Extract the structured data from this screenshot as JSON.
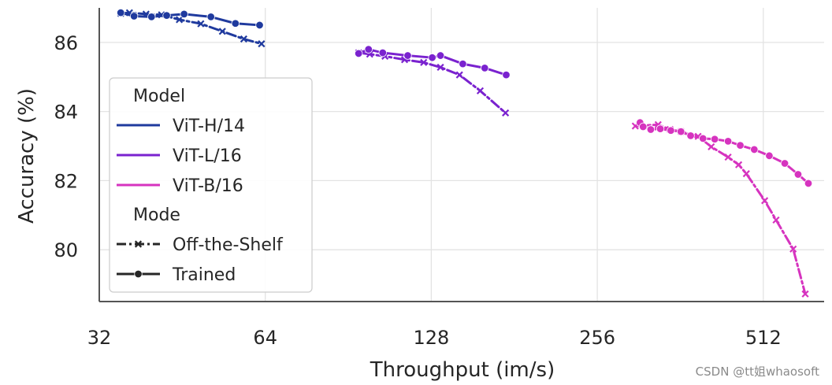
{
  "chart_data": {
    "type": "line",
    "xlabel": "Throughput (im/s)",
    "ylabel": "Accuracy (%)",
    "xscale": "log2",
    "xlim": [
      32,
      660
    ],
    "ylim": [
      78.5,
      87.0
    ],
    "xticks": [
      32,
      64,
      128,
      256,
      512
    ],
    "yticks": [
      80,
      82,
      84,
      86
    ],
    "grid": true,
    "legend": {
      "position": "left",
      "model_title": "Model",
      "mode_title": "Mode",
      "models": [
        {
          "name": "ViT-H/14",
          "color": "#1f3a9e"
        },
        {
          "name": "ViT-L/16",
          "color": "#7a22cf"
        },
        {
          "name": "ViT-B/16",
          "color": "#d633bf"
        }
      ],
      "modes": [
        {
          "name": "Off-the-Shelf",
          "marker": "x",
          "dash": "dashdot"
        },
        {
          "name": "Trained",
          "marker": "o",
          "dash": "solid"
        }
      ]
    },
    "series": [
      {
        "name": "ViT-H/14",
        "mode": "Off-the-Shelf",
        "color": "#1f3a9e",
        "x": [
          35.0,
          36.3,
          38.9,
          41.5,
          44.7,
          48.9,
          53.5,
          58.5,
          63.0
        ],
        "y": [
          86.84,
          86.86,
          86.82,
          86.8,
          86.66,
          86.54,
          86.32,
          86.1,
          85.96
        ]
      },
      {
        "name": "ViT-H/14",
        "mode": "Trained",
        "color": "#1f3a9e",
        "x": [
          35.0,
          37.0,
          39.8,
          42.4,
          45.6,
          51.0,
          56.5,
          62.5
        ],
        "y": [
          86.86,
          86.76,
          86.74,
          86.78,
          86.82,
          86.74,
          86.55,
          86.5
        ]
      },
      {
        "name": "ViT-L/16",
        "mode": "Off-the-Shelf",
        "color": "#7a22cf",
        "x": [
          94.5,
          99.0,
          105.5,
          114.5,
          124.0,
          133.0,
          144.0,
          157.0,
          174.5
        ],
        "y": [
          85.7,
          85.66,
          85.6,
          85.5,
          85.42,
          85.28,
          85.06,
          84.6,
          83.96
        ]
      },
      {
        "name": "ViT-L/16",
        "mode": "Trained",
        "color": "#7a22cf",
        "x": [
          94.5,
          98.5,
          104.5,
          116.0,
          128.5,
          133.0,
          146.0,
          160.0,
          175.0
        ],
        "y": [
          85.68,
          85.8,
          85.7,
          85.62,
          85.56,
          85.62,
          85.38,
          85.26,
          85.06
        ]
      },
      {
        "name": "ViT-B/16",
        "mode": "Off-the-Shelf",
        "color": "#d633bf",
        "x": [
          300,
          330,
          347,
          363,
          390,
          412,
          442,
          462,
          477,
          515,
          540,
          580,
          610
        ],
        "y": [
          83.58,
          83.62,
          83.48,
          83.42,
          83.28,
          82.98,
          82.68,
          82.46,
          82.2,
          81.42,
          80.86,
          80.02,
          78.72
        ]
      },
      {
        "name": "ViT-B/16",
        "mode": "Trained",
        "color": "#d633bf",
        "x": [
          306,
          310,
          320,
          333,
          348,
          363,
          378,
          398,
          418,
          442,
          465,
          493,
          525,
          560,
          592,
          618
        ],
        "y": [
          83.68,
          83.56,
          83.48,
          83.5,
          83.45,
          83.42,
          83.3,
          83.22,
          83.2,
          83.14,
          83.02,
          82.9,
          82.72,
          82.5,
          82.18,
          81.92
        ]
      }
    ]
  },
  "watermark": "CSDN @tt姐whaosoft"
}
